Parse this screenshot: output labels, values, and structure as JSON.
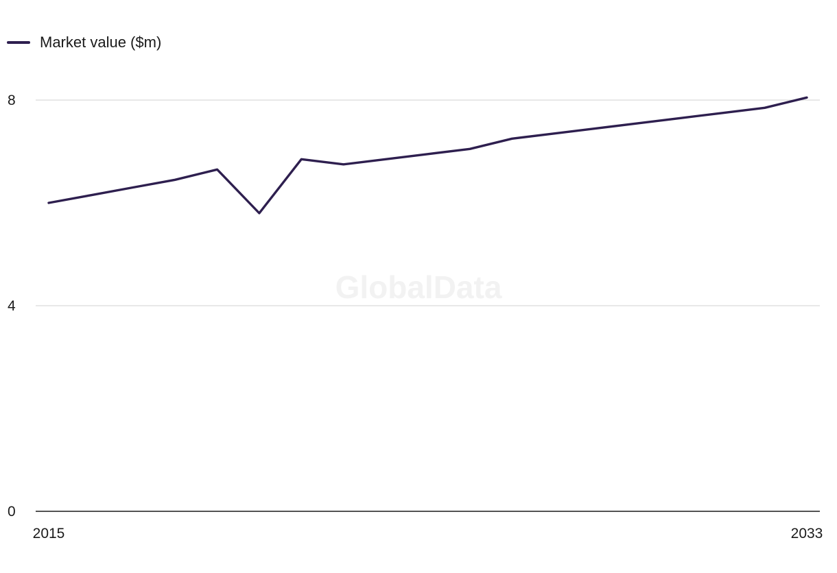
{
  "chart_data": {
    "type": "line",
    "watermark": "GlobalData",
    "legend": {
      "placement": "top-left",
      "entries": [
        "Market value ($m)"
      ]
    },
    "x": [
      2015,
      2016,
      2017,
      2018,
      2019,
      2020,
      2021,
      2022,
      2023,
      2024,
      2025,
      2026,
      2027,
      2028,
      2029,
      2030,
      2031,
      2032,
      2033
    ],
    "x_tick_labels": [
      "2015",
      "2033"
    ],
    "series": [
      {
        "name": "Market value ($m)",
        "color": "#2e1f4f",
        "values": [
          6.0,
          6.15,
          6.3,
          6.45,
          6.65,
          5.8,
          6.85,
          6.75,
          6.85,
          6.95,
          7.05,
          7.25,
          7.35,
          7.45,
          7.55,
          7.65,
          7.75,
          7.85,
          8.05
        ]
      }
    ],
    "y_ticks": [
      0,
      4,
      8
    ],
    "y_tick_labels": [
      "0",
      "4",
      "8"
    ],
    "ylim": [
      0,
      8
    ],
    "xlim": [
      2015,
      2033
    ],
    "grid": true,
    "gridline_color": "#d9d9d9",
    "axis_color": "#1a1a1a"
  }
}
